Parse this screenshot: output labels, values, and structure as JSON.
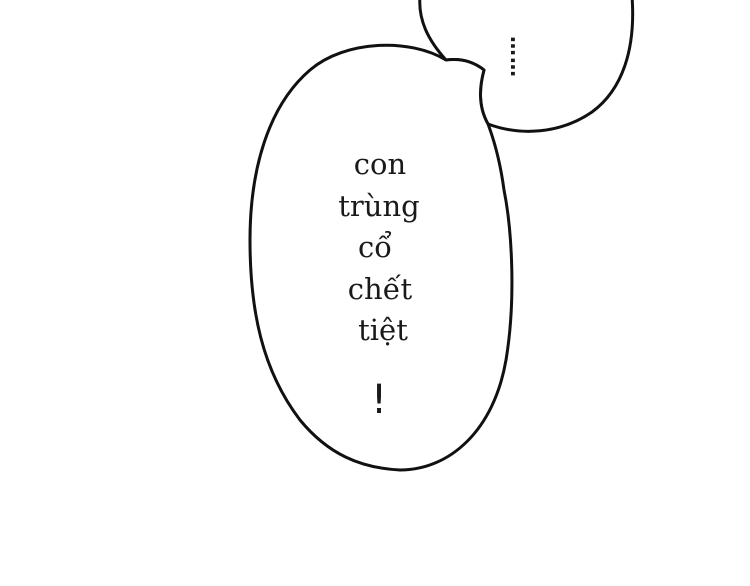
{
  "main_bubble": {
    "lines": [
      "con",
      "trùng",
      "cổ",
      "chết",
      "tiệt"
    ],
    "exclamation": "!"
  },
  "small_bubble": {
    "text": "……"
  },
  "colors": {
    "background": "#ffffff",
    "outline": "#111111",
    "text": "#1a1a1a"
  }
}
